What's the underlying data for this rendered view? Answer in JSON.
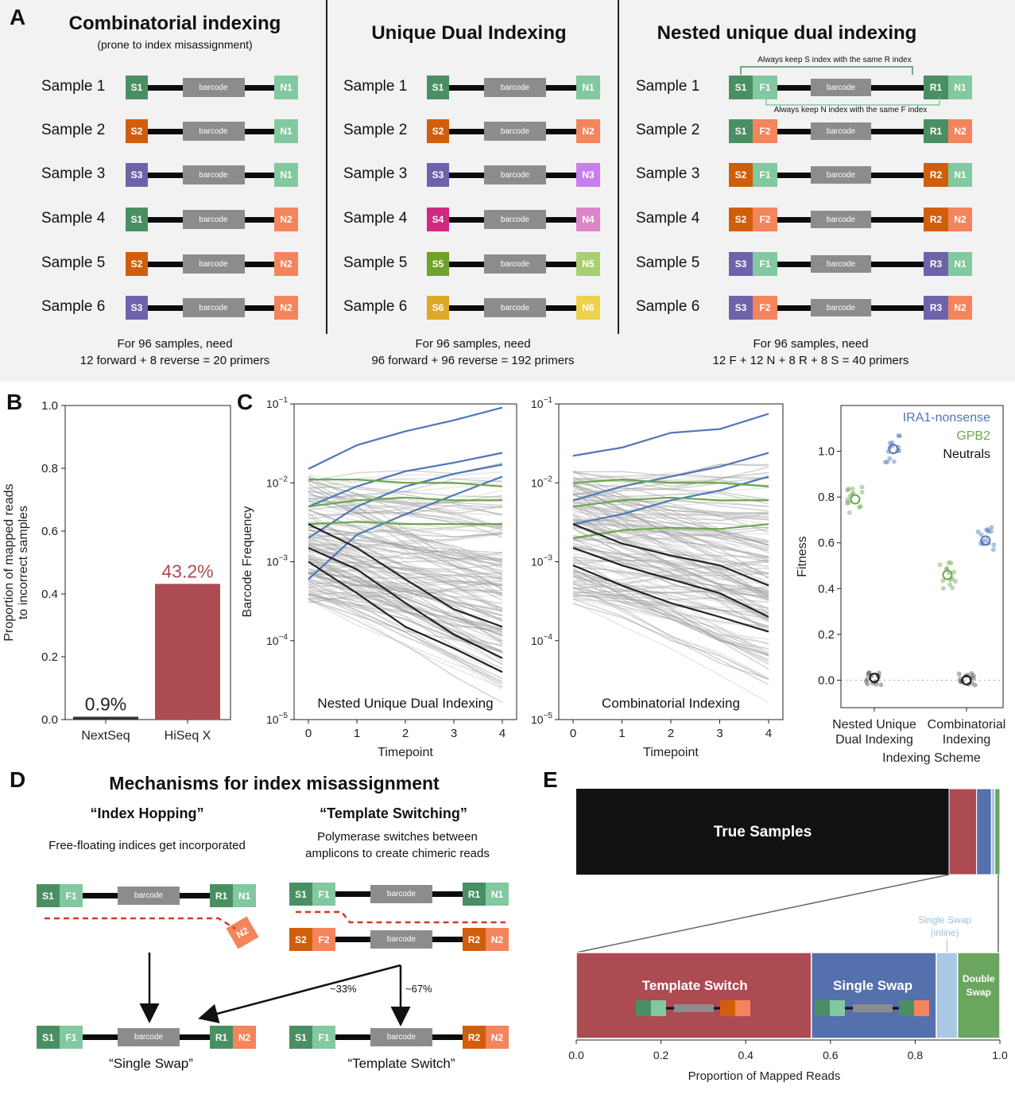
{
  "panels": {
    "A": "A",
    "B": "B",
    "C": "C",
    "D": "D",
    "E": "E"
  },
  "colors": {
    "S1": "#4a8f63",
    "S2": "#d15e0b",
    "S3": "#6d63ab",
    "S4": "#d02a80",
    "S5": "#6fa12b",
    "S6": "#dda827",
    "N1": "#82c8a0",
    "N2": "#f4845c",
    "N3": "#c97ef0",
    "N4": "#dc86c9",
    "N5": "#a9d06f",
    "N6": "#eed24a",
    "F1": "#82c8a0",
    "F2": "#f4845c",
    "R1": "#4a8f63",
    "R2": "#d15e0b",
    "R3": "#6d63ab",
    "barcode": "#8c8c8c",
    "hiseq": "#ad4b52",
    "ira1": "#4e78b6",
    "gpb2": "#6aa84f",
    "neutral": "#222222",
    "template_switch": "#ad4b52",
    "single_swap": "#5470ad",
    "single_swap_inline": "#a9c8e3",
    "double_swap": "#6aa65e",
    "true_samples": "#111111"
  },
  "panel_a": {
    "barcode_label": "barcode",
    "combinatorial": {
      "title": "Combinatorial indexing",
      "subtitle": "(prone to index misassignment)",
      "samples": [
        {
          "label": "Sample 1",
          "left": "S1",
          "right": "N1"
        },
        {
          "label": "Sample 2",
          "left": "S2",
          "right": "N1"
        },
        {
          "label": "Sample 3",
          "left": "S3",
          "right": "N1"
        },
        {
          "label": "Sample 4",
          "left": "S1",
          "right": "N2"
        },
        {
          "label": "Sample 5",
          "left": "S2",
          "right": "N2"
        },
        {
          "label": "Sample 6",
          "left": "S3",
          "right": "N2"
        }
      ],
      "need_line1": "For 96 samples, need",
      "need_line2": "12 forward + 8 reverse = 20 primers"
    },
    "udi": {
      "title": "Unique Dual Indexing",
      "samples": [
        {
          "label": "Sample 1",
          "left": "S1",
          "right": "N1"
        },
        {
          "label": "Sample 2",
          "left": "S2",
          "right": "N2"
        },
        {
          "label": "Sample 3",
          "left": "S3",
          "right": "N3"
        },
        {
          "label": "Sample 4",
          "left": "S4",
          "right": "N4"
        },
        {
          "label": "Sample 5",
          "left": "S5",
          "right": "N5"
        },
        {
          "label": "Sample 6",
          "left": "S6",
          "right": "N6"
        }
      ],
      "need_line1": "For 96 samples, need",
      "need_line2": "96 forward + 96 reverse = 192 primers"
    },
    "nested": {
      "title": "Nested unique dual indexing",
      "note_top": "Always keep S index with the same R index",
      "note_bottom": "Always keep N index with the same F index",
      "samples": [
        {
          "label": "Sample 1",
          "s": "S1",
          "f": "F1",
          "r": "R1",
          "n": "N1"
        },
        {
          "label": "Sample 2",
          "s": "S1",
          "f": "F2",
          "r": "R1",
          "n": "N2"
        },
        {
          "label": "Sample 3",
          "s": "S2",
          "f": "F1",
          "r": "R2",
          "n": "N1"
        },
        {
          "label": "Sample 4",
          "s": "S2",
          "f": "F2",
          "r": "R2",
          "n": "N2"
        },
        {
          "label": "Sample 5",
          "s": "S3",
          "f": "F1",
          "r": "R3",
          "n": "N1"
        },
        {
          "label": "Sample 6",
          "s": "S3",
          "f": "F2",
          "r": "R3",
          "n": "N2"
        }
      ],
      "need_line1": "For 96 samples, need",
      "need_line2": "12 F + 12 N + 8 R + 8 S = 40 primers"
    }
  },
  "chart_data": [
    {
      "type": "bar",
      "panel": "B",
      "categories": [
        "NextSeq",
        "HiSeq X"
      ],
      "values": [
        0.009,
        0.432
      ],
      "data_labels": [
        "0.9%",
        "43.2%"
      ],
      "ylabel_line1": "Proportion of mapped reads",
      "ylabel_line2": "to incorrect samples",
      "ylim": [
        0,
        1.0
      ],
      "yticks": [
        "0.0",
        "0.2",
        "0.4",
        "0.6",
        "0.8",
        "1.0"
      ]
    },
    {
      "type": "line",
      "panel": "C-left",
      "annotation": "Nested Unique Dual Indexing",
      "xlabel": "Timepoint",
      "ylabel": "Barcode Frequency",
      "x": [
        0,
        1,
        2,
        3,
        4
      ],
      "yscale": "log",
      "ylim": [
        1e-05,
        0.1
      ],
      "ytick_exponents": [
        "−1",
        "−2",
        "−3",
        "−4",
        "−5"
      ],
      "series": [
        {
          "group": "IRA1-nonsense",
          "values": [
            0.015,
            0.03,
            0.045,
            0.062,
            0.09
          ]
        },
        {
          "group": "IRA1-nonsense",
          "values": [
            0.005,
            0.009,
            0.014,
            0.018,
            0.024
          ]
        },
        {
          "group": "IRA1-nonsense",
          "values": [
            0.002,
            0.005,
            0.009,
            0.013,
            0.017
          ]
        },
        {
          "group": "IRA1-nonsense",
          "values": [
            0.0006,
            0.0022,
            0.004,
            0.007,
            0.012
          ]
        },
        {
          "group": "GPB2",
          "values": [
            0.011,
            0.011,
            0.01,
            0.01,
            0.009
          ]
        },
        {
          "group": "GPB2",
          "values": [
            0.005,
            0.006,
            0.0065,
            0.006,
            0.006
          ]
        },
        {
          "group": "GPB2",
          "values": [
            0.003,
            0.0032,
            0.003,
            0.003,
            0.003
          ]
        },
        {
          "group": "Neutrals",
          "values": [
            0.003,
            0.0015,
            0.0006,
            0.00025,
            0.00015
          ]
        },
        {
          "group": "Neutrals",
          "values": [
            0.0015,
            0.0008,
            0.0003,
            0.00012,
            6e-05
          ]
        },
        {
          "group": "Neutrals",
          "values": [
            0.001,
            0.0004,
            0.00015,
            8e-05,
            4e-05
          ]
        }
      ]
    },
    {
      "type": "line",
      "panel": "C-middle",
      "annotation": "Combinatorial Indexing",
      "xlabel": "Timepoint",
      "x": [
        0,
        1,
        2,
        3,
        4
      ],
      "yscale": "log",
      "ylim": [
        1e-05,
        0.1
      ],
      "ytick_exponents": [
        "−1",
        "−2",
        "−3",
        "−4",
        "−5"
      ],
      "series": [
        {
          "group": "IRA1-nonsense",
          "values": [
            0.022,
            0.028,
            0.043,
            0.048,
            0.075
          ]
        },
        {
          "group": "IRA1-nonsense",
          "values": [
            0.006,
            0.009,
            0.012,
            0.016,
            0.024
          ]
        },
        {
          "group": "IRA1-nonsense",
          "values": [
            0.003,
            0.004,
            0.006,
            0.008,
            0.012
          ]
        },
        {
          "group": "GPB2",
          "values": [
            0.01,
            0.011,
            0.01,
            0.01,
            0.009
          ]
        },
        {
          "group": "GPB2",
          "values": [
            0.005,
            0.006,
            0.0065,
            0.006,
            0.006
          ]
        },
        {
          "group": "GPB2",
          "values": [
            0.002,
            0.0025,
            0.0027,
            0.0026,
            0.003
          ]
        },
        {
          "group": "Neutrals",
          "values": [
            0.003,
            0.0017,
            0.0012,
            0.0009,
            0.0005
          ]
        },
        {
          "group": "Neutrals",
          "values": [
            0.0015,
            0.0009,
            0.0006,
            0.0004,
            0.0002
          ]
        },
        {
          "group": "Neutrals",
          "values": [
            0.0009,
            0.0005,
            0.0003,
            0.0002,
            0.00013
          ]
        }
      ]
    },
    {
      "type": "scatter",
      "panel": "C-right",
      "ylabel": "Fitness",
      "xlabel": "Indexing Scheme",
      "categories": [
        "Nested Unique Dual Indexing",
        "Combinatorial Indexing"
      ],
      "category_line1": [
        "Nested Unique",
        "Combinatorial"
      ],
      "category_line2": [
        "Dual Indexing",
        "Indexing"
      ],
      "ylim": [
        -0.12,
        1.2
      ],
      "yticks": [
        "0.0",
        "0.2",
        "0.4",
        "0.6",
        "0.8",
        "1.0"
      ],
      "legend": [
        "IRA1-nonsense",
        "GPB2",
        "Neutrals"
      ],
      "legend_loc": "top-right",
      "series": [
        {
          "name": "IRA1-nonsense",
          "means": [
            1.01,
            0.61
          ]
        },
        {
          "name": "GPB2",
          "means": [
            0.79,
            0.46
          ]
        },
        {
          "name": "Neutrals",
          "means": [
            0.01,
            0.0
          ]
        }
      ]
    },
    {
      "type": "bar",
      "panel": "E",
      "orientation": "horizontal-stacked",
      "xlabel": "Proportion of Mapped Reads",
      "xticks": [
        "0.0",
        "0.2",
        "0.4",
        "0.6",
        "0.8",
        "1.0"
      ],
      "xlim": [
        0,
        1.0
      ],
      "top_bar": [
        {
          "name": "True Samples",
          "value": 0.88
        },
        {
          "name": "Template Switch",
          "value": 0.065
        },
        {
          "name": "Single Swap",
          "value": 0.035
        },
        {
          "name": "Single Swap (inline)",
          "value": 0.008
        },
        {
          "name": "Double Swap",
          "value": 0.012
        }
      ],
      "bottom_bar": [
        {
          "name": "Template Switch",
          "value": 0.555
        },
        {
          "name": "Single Swap",
          "value": 0.295
        },
        {
          "name": "Single Swap (inline)",
          "value": 0.05
        },
        {
          "name": "Double Swap",
          "value": 0.1
        }
      ],
      "labels": {
        "true_samples": "True Samples",
        "template_switch": "Template Switch",
        "single_swap": "Single Swap",
        "inline_line1": "Single Swap",
        "inline_line2": "(inline)",
        "double_line1": "Double",
        "double_line2": "Swap"
      }
    }
  ],
  "panel_d": {
    "title": "Mechanisms for index misassignment",
    "hopping_title": "“Index Hopping”",
    "hopping_desc": "Free-floating indices get incorporated",
    "switching_title": "“Template Switching”",
    "switching_desc1": "Polymerase switches between",
    "switching_desc2": "amplicons to create chimeric reads",
    "pct33": "~33%",
    "pct67": "~67%",
    "single_swap_caption": "“Single Swap”",
    "template_switch_caption": "“Template Switch”",
    "barcode_label": "barcode"
  }
}
